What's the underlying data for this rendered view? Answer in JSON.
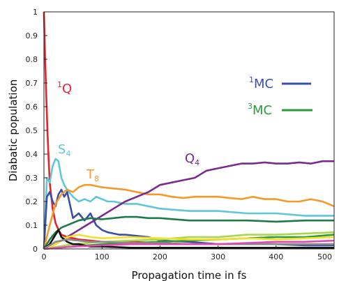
{
  "chart_data": {
    "type": "line",
    "title": "",
    "xlabel": "Propagation time in fs",
    "ylabel": "Diabatic population",
    "xlim": [
      0,
      500
    ],
    "ylim": [
      0,
      1
    ],
    "grid": false,
    "xticks": [
      "0",
      "100",
      "200",
      "300",
      "400",
      "500"
    ],
    "yticks": [
      "0",
      "0.1",
      "0.2",
      "0.3",
      "0.4",
      "0.5",
      "0.6",
      "0.7",
      "0.8",
      "0.9",
      "1"
    ],
    "annotations": {
      "q1": {
        "sup": "1",
        "base": "Q",
        "color": "#e8212b"
      },
      "s4": {
        "base": "S",
        "sub": "4",
        "color": "#5fc8d6"
      },
      "t8": {
        "base": "T",
        "sub": "8",
        "color": "#f39a2a"
      },
      "q4": {
        "base": "Q",
        "sub": "4",
        "color": "#7b2a8e"
      }
    },
    "legend": {
      "position": "right",
      "items": [
        {
          "sup": "1",
          "base": "MC",
          "color": "#3a50a8"
        },
        {
          "sup": "3",
          "base": "MC",
          "color": "#2a9a3a"
        }
      ]
    },
    "series": [
      {
        "color": "#e8212b",
        "x": [
          0,
          2,
          4,
          6,
          8,
          10,
          15,
          20,
          25,
          30,
          40,
          50,
          60,
          80,
          100,
          150,
          200,
          250,
          300,
          350,
          400,
          450,
          500
        ],
        "y": [
          1.0,
          0.8,
          0.65,
          0.5,
          0.38,
          0.28,
          0.17,
          0.11,
          0.08,
          0.06,
          0.05,
          0.045,
          0.04,
          0.035,
          0.03,
          0.03,
          0.025,
          0.02,
          0.02,
          0.02,
          0.02,
          0.02,
          0.02
        ]
      },
      {
        "color": "#5fc8d6",
        "x": [
          0,
          5,
          10,
          15,
          20,
          25,
          30,
          35,
          40,
          50,
          60,
          70,
          80,
          90,
          100,
          110,
          120,
          140,
          160,
          180,
          200,
          250,
          300,
          350,
          400,
          450,
          500
        ],
        "y": [
          0,
          0.3,
          0.28,
          0.35,
          0.38,
          0.37,
          0.3,
          0.27,
          0.25,
          0.22,
          0.2,
          0.21,
          0.2,
          0.22,
          0.21,
          0.2,
          0.2,
          0.19,
          0.19,
          0.18,
          0.17,
          0.16,
          0.16,
          0.15,
          0.15,
          0.14,
          0.14
        ]
      },
      {
        "color": "#3a50a8",
        "x": [
          0,
          5,
          10,
          15,
          20,
          25,
          30,
          35,
          40,
          50,
          60,
          70,
          80,
          90,
          100,
          110,
          120,
          130,
          140,
          160,
          180,
          200,
          250,
          300,
          350,
          400,
          450,
          500
        ],
        "y": [
          0,
          0.22,
          0.24,
          0.2,
          0.18,
          0.23,
          0.25,
          0.22,
          0.24,
          0.13,
          0.15,
          0.12,
          0.15,
          0.1,
          0.08,
          0.07,
          0.065,
          0.06,
          0.06,
          0.055,
          0.05,
          0.035,
          0.03,
          0.02,
          0.02,
          0.02,
          0.015,
          0.015
        ]
      },
      {
        "color": "#f39a2a",
        "x": [
          0,
          10,
          20,
          30,
          40,
          50,
          60,
          70,
          80,
          90,
          100,
          120,
          140,
          160,
          180,
          200,
          220,
          240,
          260,
          280,
          300,
          320,
          340,
          360,
          380,
          400,
          420,
          440,
          460,
          480,
          500
        ],
        "y": [
          0,
          0.1,
          0.19,
          0.23,
          0.25,
          0.24,
          0.26,
          0.27,
          0.27,
          0.265,
          0.26,
          0.255,
          0.25,
          0.24,
          0.23,
          0.23,
          0.22,
          0.215,
          0.22,
          0.22,
          0.22,
          0.215,
          0.21,
          0.22,
          0.21,
          0.21,
          0.2,
          0.2,
          0.21,
          0.2,
          0.18
        ]
      },
      {
        "color": "#7b2a8e",
        "x": [
          0,
          20,
          40,
          60,
          80,
          100,
          120,
          140,
          160,
          180,
          200,
          220,
          240,
          260,
          280,
          300,
          320,
          340,
          360,
          380,
          400,
          420,
          440,
          460,
          480,
          500
        ],
        "y": [
          0,
          0.02,
          0.05,
          0.08,
          0.11,
          0.14,
          0.17,
          0.2,
          0.22,
          0.24,
          0.27,
          0.28,
          0.29,
          0.3,
          0.33,
          0.34,
          0.35,
          0.36,
          0.36,
          0.365,
          0.36,
          0.36,
          0.365,
          0.36,
          0.37,
          0.37
        ]
      },
      {
        "color": "#1e7a4a",
        "x": [
          0,
          10,
          20,
          30,
          40,
          50,
          60,
          80,
          100,
          120,
          140,
          160,
          180,
          200,
          250,
          300,
          350,
          400,
          450,
          500
        ],
        "y": [
          0,
          0.04,
          0.07,
          0.09,
          0.1,
          0.11,
          0.12,
          0.13,
          0.125,
          0.13,
          0.135,
          0.135,
          0.13,
          0.13,
          0.12,
          0.12,
          0.12,
          0.115,
          0.12,
          0.12
        ]
      },
      {
        "color": "#2a9a3a",
        "x": [
          0,
          50,
          100,
          150,
          200,
          250,
          300,
          350,
          400,
          450,
          500
        ],
        "y": [
          0,
          0.01,
          0.02,
          0.025,
          0.03,
          0.035,
          0.04,
          0.045,
          0.05,
          0.05,
          0.06
        ]
      },
      {
        "color": "#a8d84a",
        "x": [
          0,
          50,
          100,
          150,
          200,
          250,
          300,
          350,
          400,
          450,
          500
        ],
        "y": [
          0,
          0.02,
          0.03,
          0.035,
          0.04,
          0.05,
          0.05,
          0.06,
          0.06,
          0.065,
          0.07
        ]
      },
      {
        "color": "#f2e02a",
        "x": [
          0,
          20,
          40,
          60,
          80,
          100,
          150,
          200,
          250,
          300,
          350,
          400,
          450,
          500
        ],
        "y": [
          0,
          0.02,
          0.05,
          0.06,
          0.05,
          0.045,
          0.05,
          0.045,
          0.04,
          0.04,
          0.045,
          0.04,
          0.045,
          0.05
        ]
      },
      {
        "color": "#111111",
        "x": [
          0,
          10,
          20,
          25,
          30,
          40,
          50,
          60,
          80,
          100,
          150,
          200,
          250,
          300,
          400,
          500
        ],
        "y": [
          0,
          0.02,
          0.06,
          0.08,
          0.05,
          0.03,
          0.02,
          0.02,
          0.01,
          0.01,
          0.005,
          0.005,
          0.005,
          0.005,
          0.005,
          0.005
        ]
      },
      {
        "color": "#8a8a8a",
        "x": [
          0,
          20,
          40,
          60,
          80,
          100,
          150,
          200,
          250,
          300,
          350,
          400,
          450,
          500
        ],
        "y": [
          0,
          0.03,
          0.04,
          0.035,
          0.03,
          0.03,
          0.025,
          0.025,
          0.02,
          0.02,
          0.02,
          0.02,
          0.02,
          0.02
        ]
      },
      {
        "color": "#e04ab0",
        "x": [
          0,
          50,
          100,
          150,
          200,
          250,
          300,
          350,
          400,
          450,
          500
        ],
        "y": [
          0,
          0.01,
          0.015,
          0.02,
          0.02,
          0.02,
          0.02,
          0.025,
          0.03,
          0.03,
          0.035
        ]
      }
    ]
  }
}
